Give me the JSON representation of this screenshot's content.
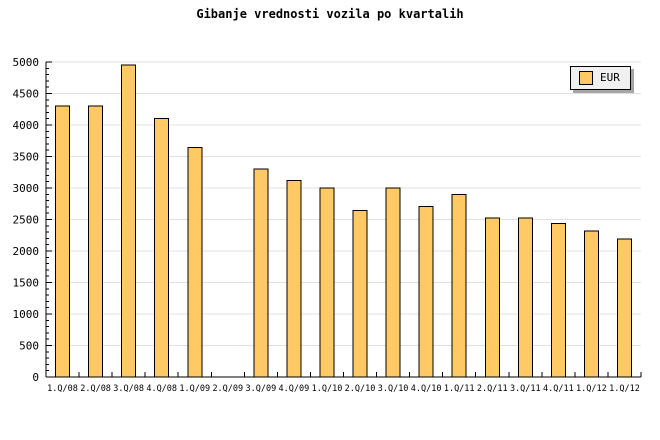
{
  "title": "Gibanje vrednosti vozila po kvartalih",
  "legend": {
    "label": "EUR",
    "position": "top-right"
  },
  "colors": {
    "background": "#FFFFFF",
    "bar_fill": "#FFC966",
    "bar_stroke": "#000000",
    "grid": "#E0E0E0",
    "axis": "#000000",
    "text": "#000000",
    "legend_bg": "#F0F0F0",
    "legend_border": "#000000",
    "legend_shadow": "#A6A6A6"
  },
  "chart_data": {
    "type": "bar",
    "title": "Gibanje vrednosti vozila po kvartalih",
    "categories": [
      "1.Q/08",
      "2.Q/08",
      "3.Q/08",
      "4.Q/08",
      "1.Q/09",
      "2.Q/09",
      "3.Q/09",
      "4.Q/09",
      "1.Q/10",
      "2.Q/10",
      "3.Q/10",
      "4.Q/10",
      "1.Q/11",
      "2.Q/11",
      "3.Q/11",
      "4.Q/11",
      "1.Q/12",
      "1.Q/12"
    ],
    "series": [
      {
        "name": "EUR",
        "values": [
          4300,
          4300,
          4950,
          4100,
          3640,
          null,
          3300,
          3120,
          3000,
          2640,
          3000,
          2710,
          2900,
          2520,
          2520,
          2440,
          2320,
          2190
        ]
      }
    ],
    "xlabel": "",
    "ylabel": "",
    "ylim": [
      0,
      5000
    ],
    "ytick_step": 500,
    "y_minor_tick_step": 100,
    "ytick_labels": [
      "0",
      "500",
      "1000",
      "1500",
      "2000",
      "2500",
      "3000",
      "3500",
      "4000",
      "4500",
      "5000"
    ],
    "grid": true,
    "legend_position": "top-right",
    "note_missing_category": "2.Q/09"
  }
}
